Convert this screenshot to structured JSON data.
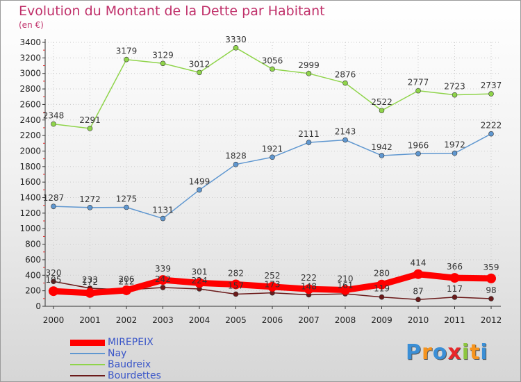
{
  "chart_data": {
    "type": "line",
    "title": "Evolution du Montant de la Dette par Habitant",
    "subtitle": "(en €)",
    "x": [
      "2000",
      "2001",
      "2002",
      "2003",
      "2004",
      "2005",
      "2006",
      "2007",
      "2008",
      "2009",
      "2010",
      "2011",
      "2012"
    ],
    "ylim": [
      0,
      3400
    ],
    "yticks": [
      0,
      200,
      400,
      600,
      800,
      1000,
      1200,
      1400,
      1600,
      1800,
      2000,
      2200,
      2400,
      2600,
      2800,
      3000,
      3200,
      3400
    ],
    "grid": true,
    "legend_position": "bottom-left",
    "series": [
      {
        "name": "MIREPEIX",
        "color": "#ff0000",
        "values": [
          195,
          172,
          206,
          339,
          301,
          282,
          252,
          222,
          210,
          280,
          414,
          366,
          359
        ]
      },
      {
        "name": "Nay",
        "color": "#5f97d0",
        "values": [
          1287,
          1272,
          1275,
          1131,
          1499,
          1828,
          1921,
          2111,
          2143,
          1942,
          1966,
          1972,
          2222
        ]
      },
      {
        "name": "Baudreix",
        "color": "#8fd44a",
        "values": [
          2348,
          2291,
          3179,
          3129,
          3012,
          3330,
          3056,
          2999,
          2876,
          2522,
          2777,
          2723,
          2737
        ]
      },
      {
        "name": "Bourdettes",
        "color": "#6b1a1a",
        "values": [
          320,
          233,
          212,
          242,
          224,
          157,
          173,
          148,
          161,
          119,
          87,
          117,
          98
        ]
      }
    ]
  },
  "logo": {
    "letters": [
      "P",
      "r",
      "o",
      "x",
      "i",
      "t",
      "i"
    ],
    "colors": [
      "#3b8fd6",
      "#f7941d",
      "#3b8fd6",
      "#e8272a",
      "#8dc63f",
      "#f7941d",
      "#3b8fd6"
    ]
  }
}
